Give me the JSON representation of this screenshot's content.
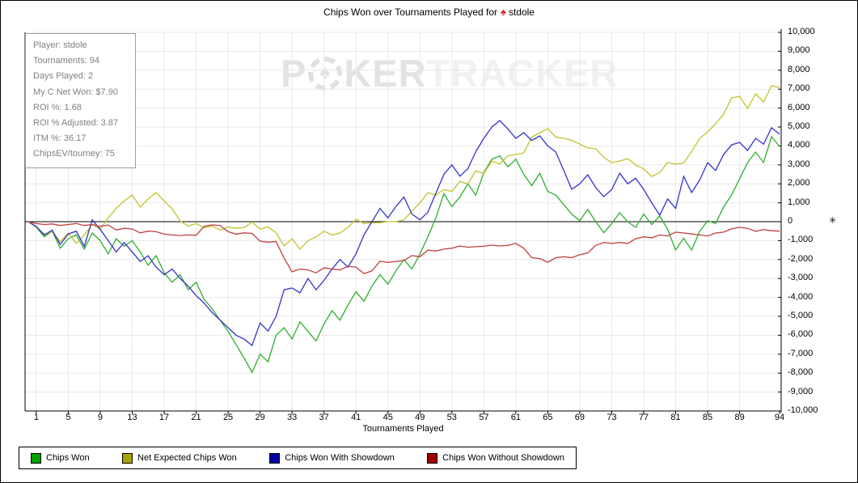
{
  "title": {
    "prefix": "Chips Won over Tournaments Played for",
    "icon_glyph": "♠",
    "player": "stdole"
  },
  "watermark": {
    "part1": "P",
    "chip_glyph": "♠",
    "part2": "KER",
    "part3": "TRACKER"
  },
  "stats_panel": {
    "lines": [
      "Player: stdole",
      "Tournaments: 94",
      "Days Played: 2",
      "My C Net Won: $7.90",
      "ROI %: 1.68",
      "ROI % Adjusted: 3.87",
      "ITM %: 36.17",
      "ChipsEV/tourney: 75"
    ]
  },
  "axes": {
    "xlabel": "Tournaments Played",
    "y_axis_marker": "✳",
    "grid_color": "#e8e8e8",
    "axis_color": "#000000"
  },
  "chart_data": {
    "type": "line",
    "title": "Chips Won over Tournaments Played for stdole",
    "xlabel": "Tournaments Played",
    "ylabel": "",
    "x_range": [
      0,
      94
    ],
    "ylim": [
      -10000,
      10000
    ],
    "grid": true,
    "legend_position": "bottom",
    "x_ticks": [
      1,
      5,
      9,
      13,
      17,
      21,
      25,
      29,
      33,
      37,
      41,
      45,
      49,
      53,
      57,
      61,
      65,
      69,
      73,
      77,
      81,
      85,
      89,
      94
    ],
    "y_tick_values": [
      10000,
      9000,
      8000,
      7000,
      6000,
      5000,
      4000,
      3000,
      2000,
      1000,
      0,
      -1000,
      -2000,
      -3000,
      -4000,
      -5000,
      -6000,
      -7000,
      -8000,
      -9000,
      -10000
    ],
    "y_tick_labels": [
      "10,000",
      "9,000",
      "8,000",
      "7,000",
      "6,000",
      "5,000",
      "4,000",
      "3,000",
      "2,000",
      "1,000",
      "0",
      "-1,000",
      "-2,000",
      "-3,000",
      "-4,000",
      "-5,000",
      "-6,000",
      "-7,000",
      "-8,000",
      "-9,000",
      "-10,000"
    ],
    "series": [
      {
        "name": "Chips Won",
        "color": "#2FAF2F",
        "legend_color": "#00A000",
        "values": [
          0,
          -300,
          -800,
          -500,
          -1400,
          -900,
          -700,
          -1450,
          -600,
          -1000,
          -1700,
          -900,
          -1300,
          -1000,
          -1600,
          -2300,
          -1800,
          -2700,
          -3200,
          -2800,
          -3600,
          -3200,
          -4100,
          -4600,
          -5200,
          -5800,
          -6500,
          -7200,
          -7960,
          -7000,
          -7400,
          -6000,
          -5600,
          -6200,
          -5300,
          -5800,
          -6300,
          -5400,
          -4700,
          -5200,
          -4400,
          -3700,
          -4200,
          -3400,
          -2800,
          -3300,
          -2600,
          -2000,
          -2500,
          -1700,
          -800,
          200,
          1480,
          800,
          1300,
          2000,
          1400,
          2600,
          3300,
          3470,
          2900,
          3300,
          2500,
          1900,
          2560,
          1600,
          1400,
          900,
          400,
          50,
          640,
          0,
          -580,
          -100,
          470,
          0,
          -300,
          400,
          -150,
          300,
          -400,
          -1500,
          -870,
          -1500,
          -510,
          50,
          -100,
          770,
          1410,
          2260,
          3120,
          3680,
          3120,
          4490,
          3970
        ]
      },
      {
        "name": "Net Expected Chips Won",
        "color": "#C3C32E",
        "legend_color": "#A8A400",
        "values": [
          0,
          -300,
          -650,
          -550,
          -1050,
          -600,
          -1150,
          -700,
          -150,
          -400,
          200,
          700,
          1100,
          1410,
          770,
          1200,
          1540,
          1100,
          680,
          40,
          -230,
          -100,
          -310,
          -230,
          -440,
          -280,
          -350,
          -310,
          -20,
          -390,
          -280,
          -580,
          -1280,
          -900,
          -1450,
          -1000,
          -800,
          -510,
          -700,
          -600,
          -300,
          130,
          -100,
          -50,
          -50,
          0,
          0,
          100,
          550,
          1000,
          1540,
          1400,
          1700,
          1600,
          2130,
          2000,
          2690,
          2550,
          3200,
          3050,
          3470,
          3550,
          3630,
          4470,
          4700,
          4910,
          4470,
          4400,
          4300,
          4100,
          3900,
          3850,
          3400,
          3120,
          3200,
          3330,
          3000,
          2780,
          2390,
          2600,
          3120,
          3050,
          3100,
          3700,
          4400,
          4740,
          5170,
          5680,
          6540,
          6620,
          5980,
          6750,
          6320,
          7180,
          7090
        ]
      },
      {
        "name": "Chips Won With Showdown",
        "color": "#3333CC",
        "legend_color": "#0000A0",
        "values": [
          0,
          -250,
          -700,
          -450,
          -1200,
          -650,
          -500,
          -1300,
          100,
          -400,
          -1000,
          -1600,
          -1100,
          -1600,
          -2100,
          -1800,
          -2400,
          -2800,
          -2500,
          -3000,
          -3400,
          -3900,
          -4300,
          -4800,
          -5200,
          -5600,
          -6000,
          -6200,
          -6540,
          -5350,
          -5780,
          -5000,
          -3600,
          -3500,
          -3750,
          -3000,
          -3600,
          -3100,
          -2500,
          -2000,
          -2400,
          -1700,
          -700,
          0,
          700,
          200,
          800,
          1300,
          400,
          100,
          500,
          1500,
          2500,
          3000,
          2400,
          2800,
          3700,
          4400,
          5000,
          5340,
          4900,
          4400,
          4700,
          4290,
          4530,
          4000,
          3680,
          2700,
          1710,
          2000,
          2480,
          1800,
          1320,
          1700,
          2560,
          2000,
          2300,
          1700,
          1000,
          340,
          1200,
          700,
          2390,
          1540,
          2200,
          3120,
          2700,
          3550,
          4060,
          4190,
          3760,
          4400,
          4100,
          4960,
          4620
        ]
      },
      {
        "name": "Chips Won Without Showdown",
        "color": "#C04040",
        "legend_color": "#A00000",
        "values": [
          0,
          -100,
          -150,
          -120,
          -200,
          -150,
          -100,
          -200,
          -150,
          -250,
          -170,
          -440,
          -350,
          -390,
          -590,
          -500,
          -530,
          -660,
          -700,
          -730,
          -700,
          -720,
          -250,
          -170,
          -200,
          -530,
          -660,
          -590,
          -620,
          -1030,
          -1080,
          -1050,
          -1920,
          -2650,
          -2500,
          -2550,
          -2700,
          -2440,
          -2500,
          -2550,
          -2350,
          -2400,
          -2740,
          -2600,
          -2090,
          -2150,
          -2100,
          -2050,
          -1790,
          -1850,
          -1500,
          -1550,
          -1450,
          -1400,
          -1280,
          -1350,
          -1320,
          -1300,
          -1240,
          -1280,
          -1250,
          -1150,
          -1400,
          -1900,
          -1950,
          -2140,
          -1900,
          -1850,
          -1900,
          -1750,
          -1650,
          -1250,
          -1100,
          -1150,
          -1100,
          -1150,
          -900,
          -800,
          -850,
          -700,
          -750,
          -550,
          -600,
          -650,
          -700,
          -750,
          -600,
          -550,
          -380,
          -300,
          -350,
          -510,
          -420,
          -480,
          -500
        ]
      }
    ]
  }
}
